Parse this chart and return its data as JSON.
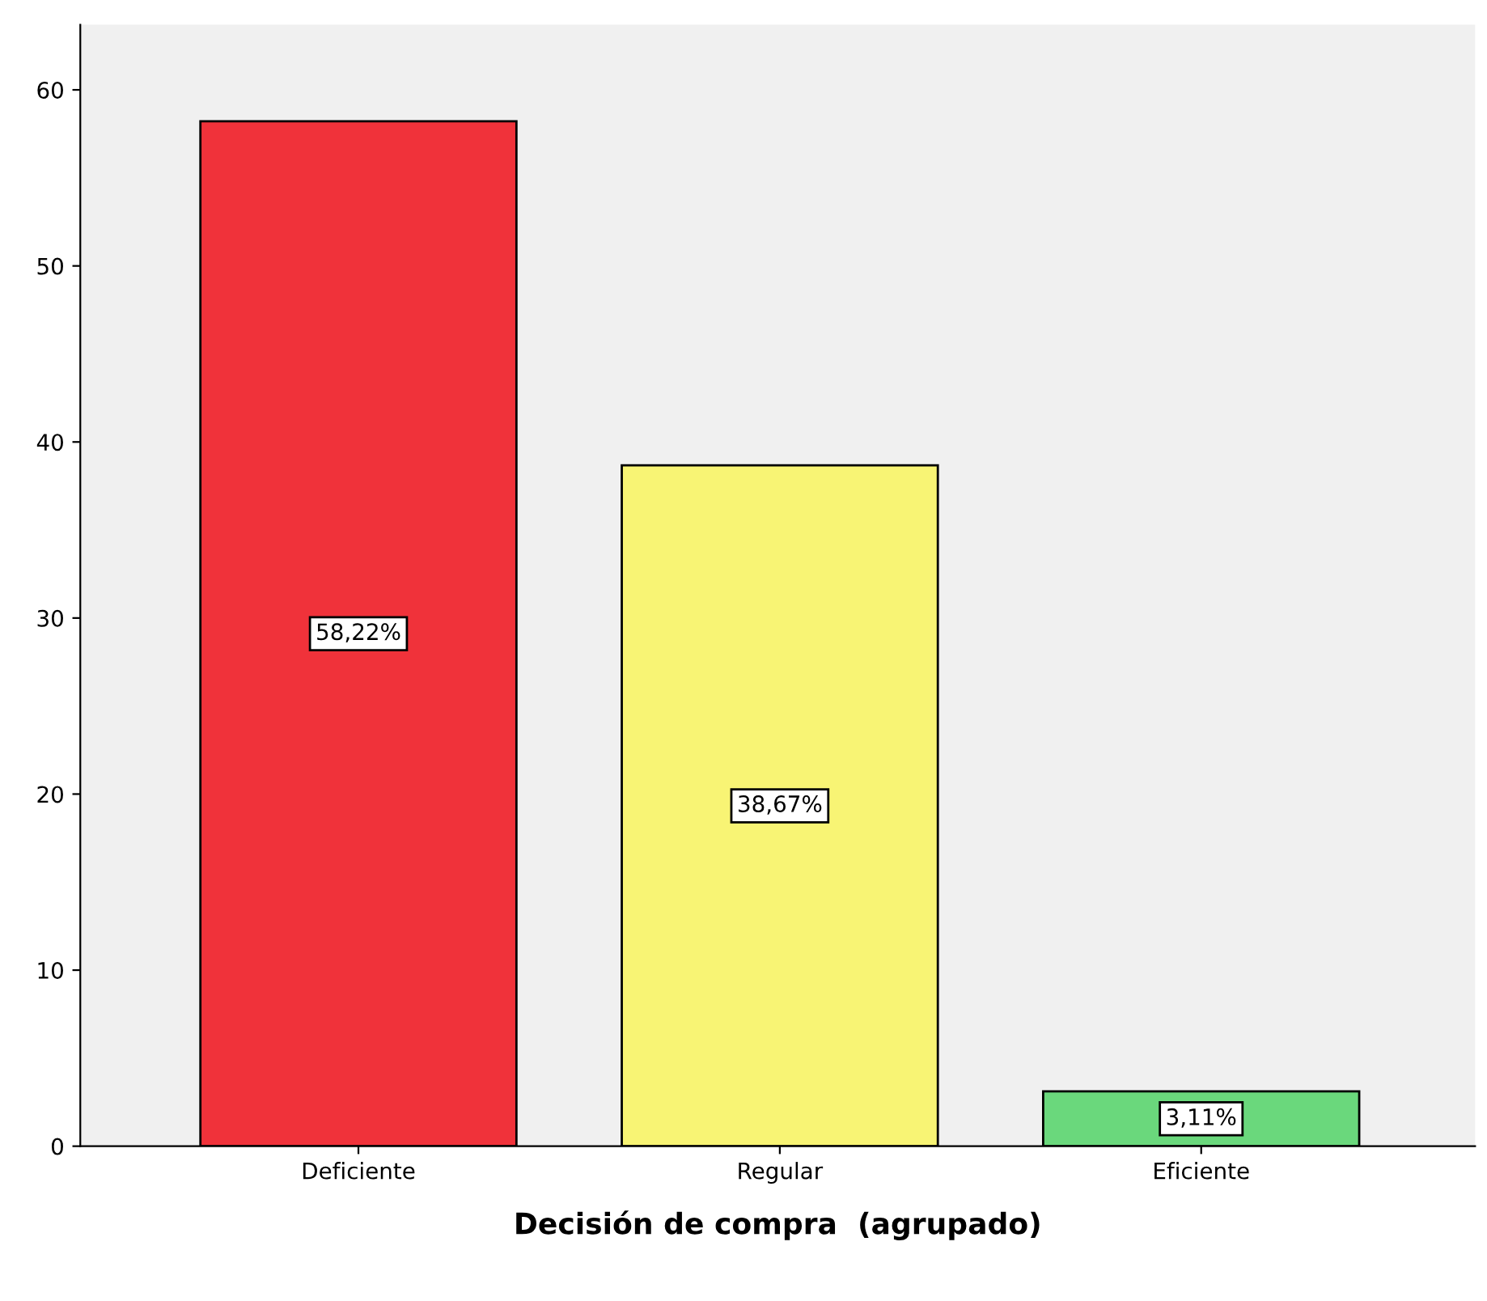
{
  "chart_data": {
    "type": "bar",
    "xlabel": "Decisión de compra  (agrupado)",
    "categories": [
      "Deficiente",
      "Regular",
      "Eficiente"
    ],
    "values": [
      58.22,
      38.67,
      3.11
    ],
    "colors": [
      "#f0323a",
      "#f8f474",
      "#6ad87c"
    ],
    "value_labels": [
      "58,22%",
      "38,67%",
      "3,11%"
    ],
    "ylim": [
      0,
      63.7
    ],
    "yticks": [
      0,
      10,
      20,
      30,
      40,
      50,
      60
    ],
    "grid": false,
    "legend": false
  }
}
